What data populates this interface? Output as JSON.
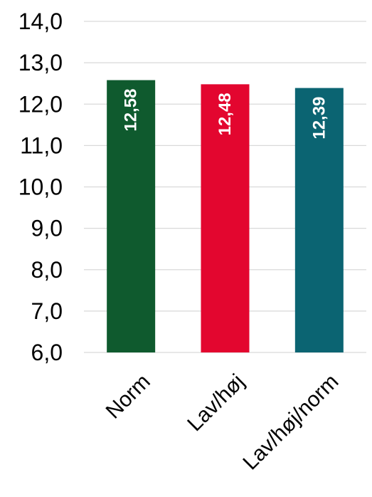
{
  "chart_data": {
    "type": "bar",
    "title": "",
    "xlabel": "",
    "ylabel": "",
    "categories": [
      "Norm",
      "Lav/høj",
      "Lav/høj/norm"
    ],
    "values": [
      12.58,
      12.48,
      12.39
    ],
    "value_labels": [
      "12,58",
      "12,48",
      "12,39"
    ],
    "bar_colors": [
      "#0f5a2e",
      "#e3062f",
      "#0b6472"
    ],
    "ylim": [
      6.0,
      14.0
    ],
    "yticks": [
      6.0,
      7.0,
      8.0,
      9.0,
      10.0,
      11.0,
      12.0,
      13.0,
      14.0
    ],
    "ytick_labels": [
      "6,0",
      "7,0",
      "8,0",
      "9,0",
      "10,0",
      "11,0",
      "12,0",
      "13,0",
      "14,0"
    ],
    "grid": true,
    "gridline_color": "#d9d9d9",
    "legend": "none",
    "data_label_color": "#ffffff",
    "axis_text_color": "#000000"
  }
}
